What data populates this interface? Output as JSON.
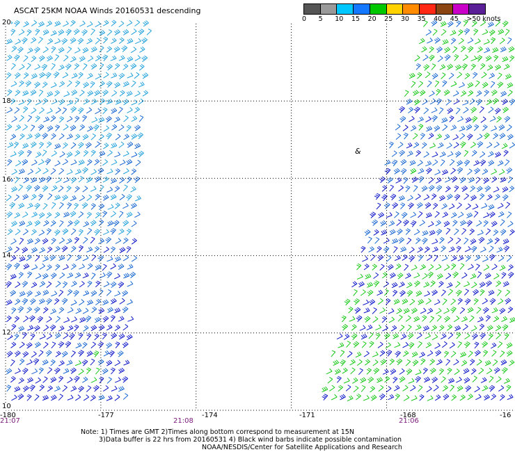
{
  "title": "ASCAT 25KM NOAA Winds 20160531 descending",
  "legend": {
    "labels": [
      "0",
      "5",
      "10",
      "15",
      "20",
      "25",
      "30",
      "35",
      "40",
      "45",
      ">50 knots"
    ],
    "colors": [
      "#555555",
      "#9a9a9a",
      "#00c8ff",
      "#1478ff",
      "#00c800",
      "#ffd200",
      "#ff8c00",
      "#ff2814",
      "#8b4513",
      "#c800c8",
      "#5a1e96"
    ]
  },
  "axes": {
    "lat_labels": [
      "20",
      "18",
      "16",
      "14",
      "12",
      "10"
    ],
    "lon_labels": [
      "-180",
      "-177",
      "-174",
      "-171",
      "-168",
      "-16"
    ],
    "time_labels": [
      "21:07",
      "21:08",
      "21:06"
    ]
  },
  "storm_symbol": "&",
  "notes": {
    "line1": "Note: 1) Times are GMT 2)Times along bottom correspond to measurement at 15N",
    "line2": "3)Data buffer is 22 hrs from 20160531 4) Black wind barbs indicate possible contamination",
    "line3": "NOAA/NESDIS/Center for Satellite Applications and Research"
  },
  "colors": {
    "light_blue": "#1ea0dc",
    "medium_blue": "#1464d2",
    "dark_blue": "#0a14c8",
    "green": "#14c814",
    "grid": "#000000",
    "time_label": "#7a1a7a"
  },
  "map_data": {
    "lat_range": [
      10,
      20
    ],
    "lon_range": [
      -180,
      -164
    ],
    "swaths": [
      {
        "name": "west",
        "lon_west_north": -180,
        "lon_east_north": -175.5,
        "lon_west_south": -180,
        "lon_east_south": -176.3
      },
      {
        "name": "east",
        "lon_west_north": -166.8,
        "lon_east_north": -164,
        "lon_west_south": -170.2,
        "lon_east_south": -164
      }
    ]
  }
}
